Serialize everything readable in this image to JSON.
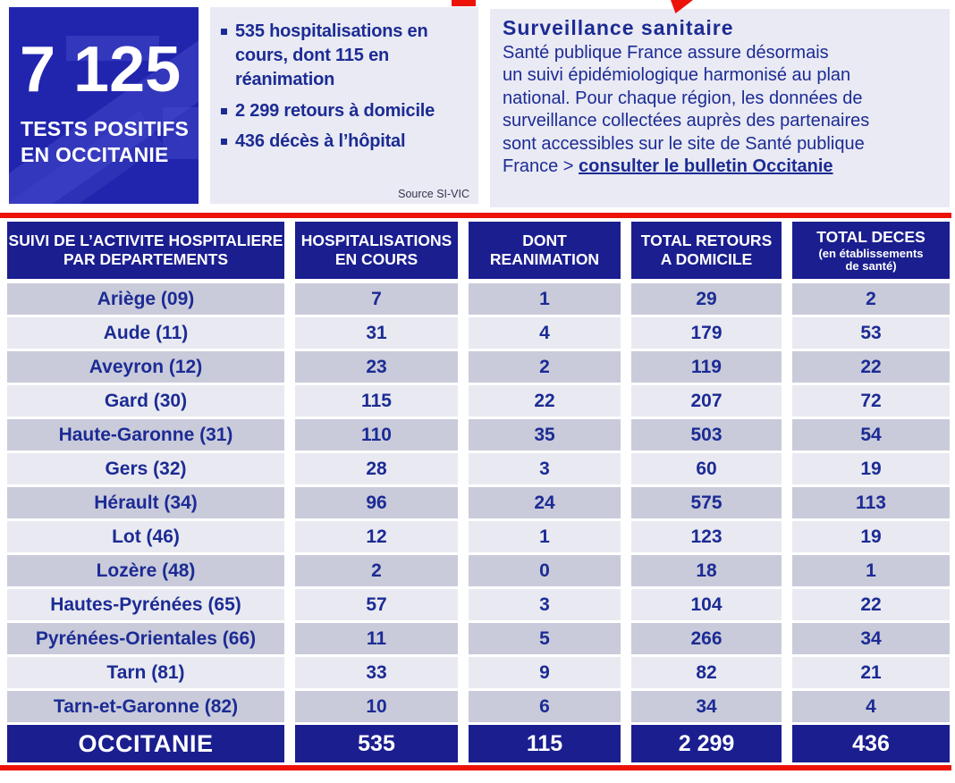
{
  "colors": {
    "navy": "#1b1e8f",
    "bright_blue": "#2125ad",
    "panel_background": "#e9eaf3",
    "row_dark": "#c9cbda",
    "row_light": "#e9eaf1",
    "text_navy": "#1c2b94",
    "red": "#ec1309"
  },
  "summary": {
    "positive_tests": {
      "value": "7 125",
      "label_lines": [
        "TESTS POSITIFS",
        "EN OCCITANIE"
      ]
    },
    "key_figures": {
      "bullets": [
        "535 hospitalisations en cours, dont 115 en réanimation",
        "2 299 retours à domicile",
        "436 décès à l’hôpital"
      ],
      "source": "Source SI-VIC"
    },
    "surveillance": {
      "title": "Surveillance sanitaire",
      "body_lines": [
        "Santé publique France assure désormais",
        "un suivi épidémiologique  harmonisé au plan",
        "national. Pour chaque région, les données de",
        "surveillance collectées auprès des partenaires",
        "sont accessibles sur le site de Santé publique",
        "France  >"
      ],
      "link_label": "consulter le bulletin Occitanie"
    }
  },
  "table": {
    "headers": {
      "dept_lines": [
        "SUIVI DE L’ACTIVITE HOSPITALIERE",
        "PAR DEPARTEMENTS"
      ],
      "hosp_lines": [
        "HOSPITALISATIONS",
        "EN COURS"
      ],
      "rea_lines": [
        "DONT",
        "REANIMATION"
      ],
      "home_lines": [
        "TOTAL RETOURS",
        "A DOMICILE"
      ],
      "deaths_main": "TOTAL DECES",
      "deaths_sub_lines": [
        "(en établissements",
        "de santé)"
      ]
    },
    "rows": [
      {
        "dept": "Ariège (09)",
        "hosp": "7",
        "rea": "1",
        "home": "29",
        "deaths": "2"
      },
      {
        "dept": "Aude (11)",
        "hosp": "31",
        "rea": "4",
        "home": "179",
        "deaths": "53"
      },
      {
        "dept": "Aveyron (12)",
        "hosp": "23",
        "rea": "2",
        "home": "119",
        "deaths": "22"
      },
      {
        "dept": "Gard (30)",
        "hosp": "115",
        "rea": "22",
        "home": "207",
        "deaths": "72"
      },
      {
        "dept": "Haute-Garonne (31)",
        "hosp": "110",
        "rea": "35",
        "home": "503",
        "deaths": "54"
      },
      {
        "dept": "Gers (32)",
        "hosp": "28",
        "rea": "3",
        "home": "60",
        "deaths": "19"
      },
      {
        "dept": "Hérault (34)",
        "hosp": "96",
        "rea": "24",
        "home": "575",
        "deaths": "113"
      },
      {
        "dept": "Lot (46)",
        "hosp": "12",
        "rea": "1",
        "home": "123",
        "deaths": "19"
      },
      {
        "dept": "Lozère (48)",
        "hosp": "2",
        "rea": "0",
        "home": "18",
        "deaths": "1"
      },
      {
        "dept": "Hautes-Pyrénées (65)",
        "hosp": "57",
        "rea": "3",
        "home": "104",
        "deaths": "22"
      },
      {
        "dept": "Pyrénées-Orientales (66)",
        "hosp": "11",
        "rea": "5",
        "home": "266",
        "deaths": "34"
      },
      {
        "dept": "Tarn (81)",
        "hosp": "33",
        "rea": "9",
        "home": "82",
        "deaths": "21"
      },
      {
        "dept": "Tarn-et-Garonne (82)",
        "hosp": "10",
        "rea": "6",
        "home": "34",
        "deaths": "4"
      }
    ],
    "total": {
      "dept": "OCCITANIE",
      "hosp": "535",
      "rea": "115",
      "home": "2 299",
      "deaths": "436"
    }
  }
}
